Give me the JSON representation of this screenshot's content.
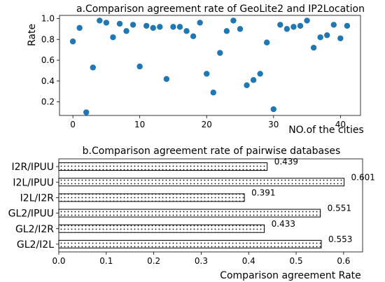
{
  "chart_data": [
    {
      "type": "scatter",
      "title": "a.Comparison agreement rate of GeoLite2 and IP2Location",
      "xlabel": "NO.of the cities",
      "ylabel": "Rate",
      "xlim": [
        -2,
        43
      ],
      "ylim": [
        0.07,
        1.03
      ],
      "xticks": [
        0,
        10,
        20,
        30,
        40
      ],
      "yticks": [
        0.2,
        0.4,
        0.6,
        0.8,
        1.0
      ],
      "ytick_labels": [
        "0.2",
        "0.4",
        "0.6",
        "0.8",
        "1.0"
      ],
      "marker_color": "#1f77b4",
      "x": [
        0,
        1,
        2,
        3,
        4,
        5,
        6,
        7,
        8,
        9,
        10,
        11,
        12,
        13,
        14,
        15,
        16,
        17,
        18,
        19,
        20,
        21,
        22,
        23,
        24,
        25,
        26,
        27,
        28,
        29,
        30,
        31,
        32,
        33,
        34,
        35,
        36,
        37,
        38,
        39,
        40,
        41
      ],
      "y": [
        0.78,
        0.91,
        0.1,
        0.53,
        0.98,
        0.96,
        0.82,
        0.95,
        0.88,
        0.94,
        0.54,
        0.93,
        0.91,
        0.92,
        0.42,
        0.92,
        0.92,
        0.88,
        0.83,
        0.96,
        0.47,
        0.29,
        0.67,
        0.88,
        0.98,
        0.9,
        0.36,
        0.41,
        0.47,
        0.77,
        0.13,
        0.94,
        0.9,
        0.92,
        0.93,
        0.98,
        0.72,
        0.82,
        0.84,
        0.94,
        0.81,
        0.93
      ]
    },
    {
      "type": "bar",
      "orientation": "horizontal",
      "title": "b.Comparison agreement rate of pairwise databases",
      "xlabel": "Comparison agreement Rate",
      "ylabel": "",
      "xlim": [
        0,
        0.64
      ],
      "xticks": [
        0.0,
        0.1,
        0.2,
        0.3,
        0.4,
        0.5,
        0.6
      ],
      "xtick_labels": [
        "0.0",
        "0.1",
        "0.2",
        "0.3",
        "0.4",
        "0.5",
        "0.6"
      ],
      "bar_fill": "dotted",
      "categories": [
        "I2R/IPUU",
        "I2L/IPUU",
        "I2L/I2R",
        "GL2/IPUU",
        "GL2/I2R",
        "GL2/I2L"
      ],
      "values": [
        0.439,
        0.601,
        0.391,
        0.551,
        0.433,
        0.553
      ],
      "value_labels": [
        "0.439",
        "0.601",
        "0.391",
        "0.551",
        "0.433",
        "0.553"
      ]
    }
  ]
}
